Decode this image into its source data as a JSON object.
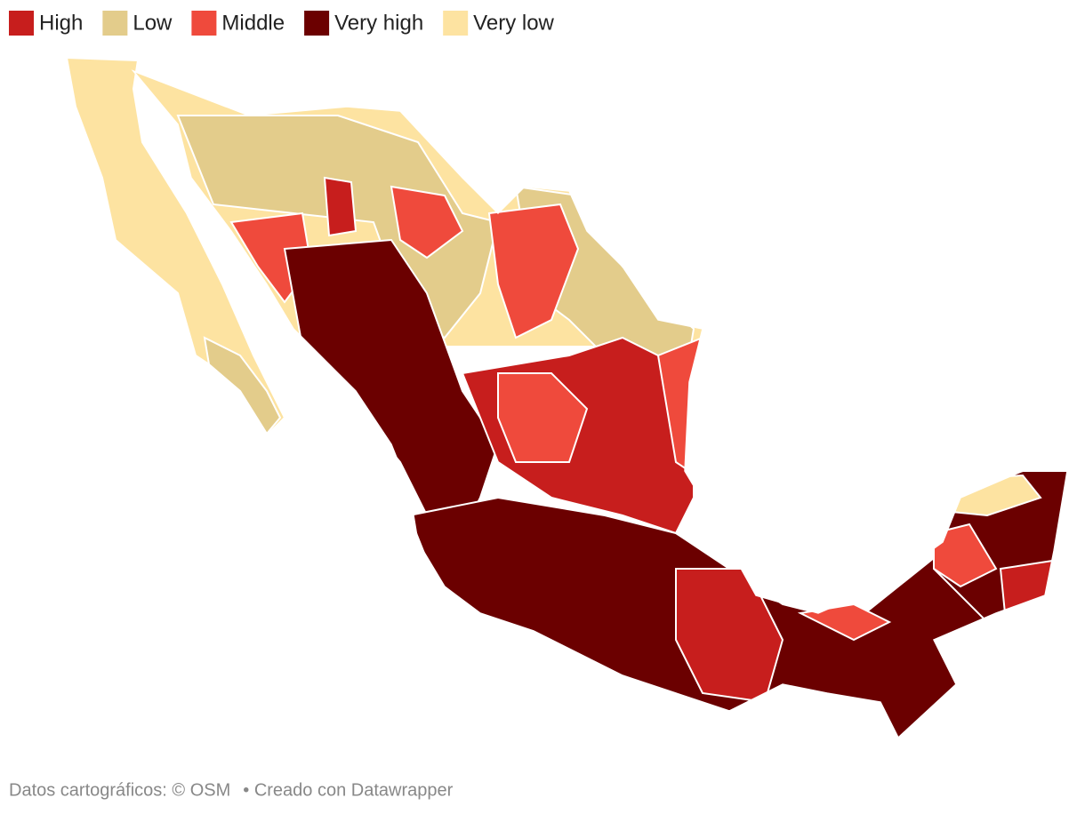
{
  "legend": [
    {
      "label": "High",
      "color": "#c71e1d"
    },
    {
      "label": "Low",
      "color": "#e3cc8b"
    },
    {
      "label": "Middle",
      "color": "#ef4a3c"
    },
    {
      "label": "Very high",
      "color": "#6b0000"
    },
    {
      "label": "Very low",
      "color": "#fde3a1"
    }
  ],
  "footer": {
    "credit": "Datos cartográficos: © OSM",
    "made_with": "• Creado con Datawrapper"
  }
}
